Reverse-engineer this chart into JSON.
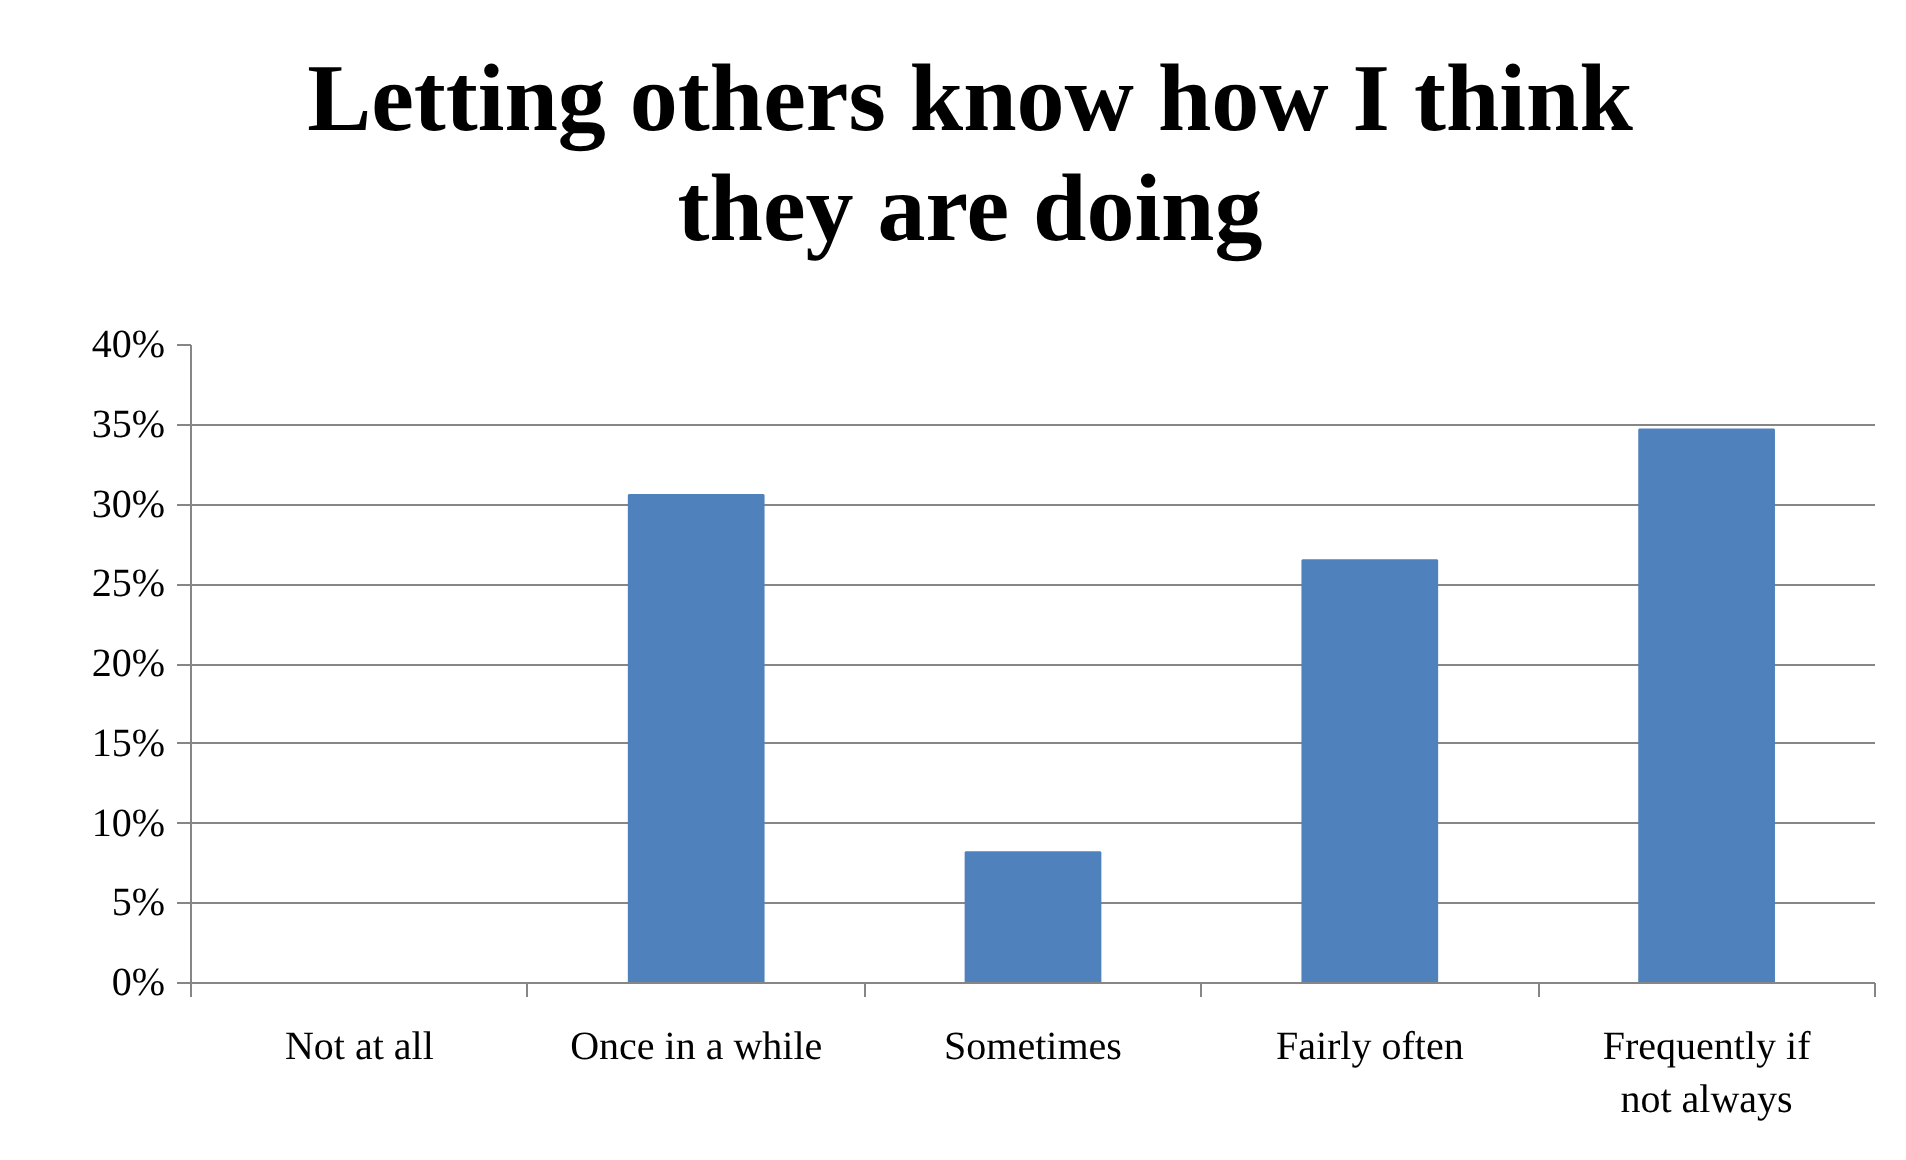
{
  "chart_data": {
    "type": "bar",
    "title": "Letting others know how I think they are doing",
    "categories": [
      "Not at all",
      "Once in a while",
      "Sometimes",
      "Fairly often",
      "Frequently if not always"
    ],
    "values": [
      0,
      30.6,
      8.2,
      26.5,
      34.7
    ],
    "color": "#4f81bd",
    "ylim": [
      0,
      40
    ],
    "yticks": [
      {
        "value": 0,
        "label": "0%"
      },
      {
        "value": 5,
        "label": "5%"
      },
      {
        "value": 10,
        "label": "10%"
      },
      {
        "value": 15,
        "label": "15%"
      },
      {
        "value": 20,
        "label": "20%"
      },
      {
        "value": 25,
        "label": "25%"
      },
      {
        "value": 30,
        "label": "30%"
      },
      {
        "value": 35,
        "label": "35%"
      },
      {
        "value": 40,
        "label": "40%"
      }
    ],
    "grid": "y"
  }
}
